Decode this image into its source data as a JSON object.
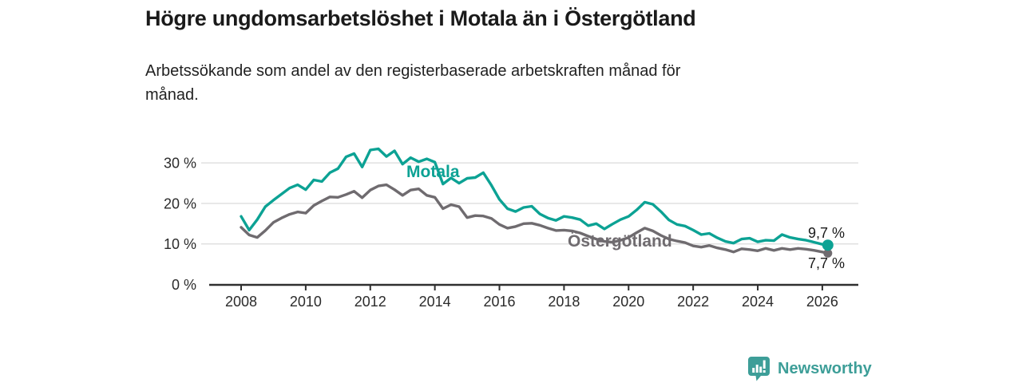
{
  "header": {
    "title": "Högre ungdomsarbetslöshet i Motala än i Östergötland",
    "subtitle": "Arbetssökande som andel av den registerbaserade arbetskraften månad för månad.",
    "subtitle_lines": [
      "Arbetssökande som andel av den registerbaserade arbetskraften månad för",
      "månad."
    ]
  },
  "footer": {
    "brand": "Newsworthy",
    "logo_icon": "bar-chart-speech-bubble-icon",
    "brand_color": "#3d9e98"
  },
  "colors": {
    "motala_teal": "#0ca294",
    "ostergotland_gray": "#6f6b6f",
    "gridline": "#dedede",
    "axis": "#2f2f2f",
    "tick_text": "#2b2b2b",
    "end_label_text": "#1a1a1a"
  },
  "chart_data": {
    "type": "line",
    "title": "Högre ungdomsarbetslöshet i Motala än i Östergötland",
    "xlabel": "",
    "ylabel": "",
    "y_unit": "%",
    "grid": "horizontal",
    "legend_position": "inline-labels",
    "xlim": [
      2007,
      2027.1
    ],
    "ylim": [
      0,
      34.5
    ],
    "x_ticks": [
      2008,
      2010,
      2012,
      2014,
      2016,
      2018,
      2020,
      2022,
      2024,
      2026
    ],
    "x_tick_labels": [
      "2008",
      "2010",
      "2012",
      "2014",
      "2016",
      "2018",
      "2020",
      "2022",
      "2024",
      "2026"
    ],
    "y_ticks": [
      0,
      10,
      20,
      30
    ],
    "y_tick_labels": [
      "0 %",
      "10 %",
      "20 %",
      "30 %"
    ],
    "x": [
      2008,
      2008.25,
      2008.5,
      2008.75,
      2009,
      2009.25,
      2009.5,
      2009.75,
      2010,
      2010.25,
      2010.5,
      2010.75,
      2011,
      2011.25,
      2011.5,
      2011.75,
      2012,
      2012.25,
      2012.5,
      2012.75,
      2013,
      2013.25,
      2013.5,
      2013.75,
      2014,
      2014.25,
      2014.5,
      2014.75,
      2015,
      2015.25,
      2015.5,
      2015.75,
      2016,
      2016.25,
      2016.5,
      2016.75,
      2017,
      2017.25,
      2017.5,
      2017.75,
      2018,
      2018.25,
      2018.5,
      2018.75,
      2019,
      2019.25,
      2019.5,
      2019.75,
      2020,
      2020.25,
      2020.5,
      2020.75,
      2021,
      2021.25,
      2021.5,
      2021.75,
      2022,
      2022.25,
      2022.5,
      2022.75,
      2023,
      2023.25,
      2023.5,
      2023.75,
      2024,
      2024.25,
      2024.5,
      2024.75,
      2025,
      2025.25,
      2025.5,
      2025.75,
      2026,
      2026.17
    ],
    "series": [
      {
        "name": "Motala",
        "color": "#0ca294",
        "end_label": "9,7 %",
        "end_value": 9.7,
        "values": [
          16.8,
          13.4,
          16.0,
          19.2,
          20.8,
          22.3,
          23.8,
          24.6,
          23.4,
          25.8,
          25.4,
          27.6,
          28.6,
          31.5,
          32.3,
          29.0,
          33.2,
          33.5,
          31.6,
          33.0,
          29.7,
          31.3,
          30.3,
          31.0,
          30.2,
          24.8,
          26.3,
          25.0,
          26.2,
          26.4,
          27.6,
          24.5,
          21.0,
          18.7,
          18.0,
          19.0,
          19.3,
          17.4,
          16.4,
          15.8,
          16.8,
          16.5,
          16.0,
          14.5,
          15.0,
          13.7,
          14.9,
          16.0,
          16.8,
          18.4,
          20.3,
          19.8,
          18.0,
          15.9,
          14.8,
          14.4,
          13.4,
          12.3,
          12.6,
          11.5,
          10.6,
          10.2,
          11.2,
          11.4,
          10.5,
          10.9,
          10.8,
          12.3,
          11.6,
          11.2,
          10.9,
          10.4,
          9.9,
          9.7
        ]
      },
      {
        "name": "Östergötland",
        "color": "#6f6b6f",
        "end_label": "7,7 %",
        "end_value": 7.7,
        "values": [
          14.1,
          12.2,
          11.6,
          13.3,
          15.3,
          16.4,
          17.3,
          17.9,
          17.6,
          19.5,
          20.6,
          21.6,
          21.5,
          22.2,
          23.0,
          21.4,
          23.3,
          24.3,
          24.6,
          23.4,
          22.0,
          23.3,
          23.6,
          22.0,
          21.5,
          18.7,
          19.7,
          19.2,
          16.5,
          17.0,
          16.9,
          16.3,
          14.8,
          13.9,
          14.3,
          15.0,
          15.1,
          14.6,
          13.9,
          13.3,
          13.4,
          13.2,
          12.7,
          11.9,
          11.2,
          10.6,
          10.4,
          10.9,
          11.6,
          12.8,
          13.9,
          13.2,
          12.1,
          11.2,
          10.7,
          10.3,
          9.5,
          9.2,
          9.6,
          9.0,
          8.6,
          8.0,
          8.8,
          8.6,
          8.3,
          8.9,
          8.4,
          8.9,
          8.6,
          8.9,
          8.7,
          8.4,
          8.0,
          7.7
        ]
      }
    ]
  }
}
